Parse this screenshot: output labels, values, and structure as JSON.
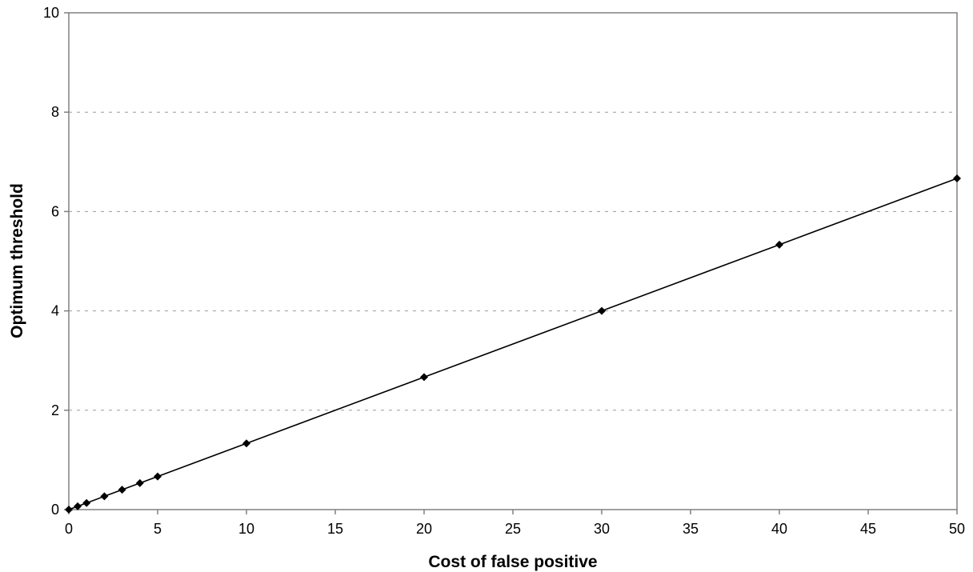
{
  "chart_data": {
    "type": "line",
    "title": "",
    "xlabel": "Cost of false positive",
    "ylabel": "Optimum threshold",
    "xlim": [
      0,
      50
    ],
    "ylim": [
      0,
      10
    ],
    "xticks": [
      0,
      5,
      10,
      15,
      20,
      25,
      30,
      35,
      40,
      45,
      50
    ],
    "yticks": [
      0,
      2,
      4,
      6,
      8,
      10
    ],
    "grid": "horizontal-dashed",
    "legend": "none",
    "marker": "diamond",
    "color": "#000000",
    "series": [
      {
        "x": [
          0,
          0.5,
          1,
          2,
          3,
          4,
          5,
          10,
          20,
          30,
          40,
          50
        ],
        "y": [
          0,
          0.067,
          0.133,
          0.267,
          0.4,
          0.533,
          0.667,
          1.333,
          2.667,
          4.0,
          5.333,
          6.667
        ]
      }
    ]
  }
}
